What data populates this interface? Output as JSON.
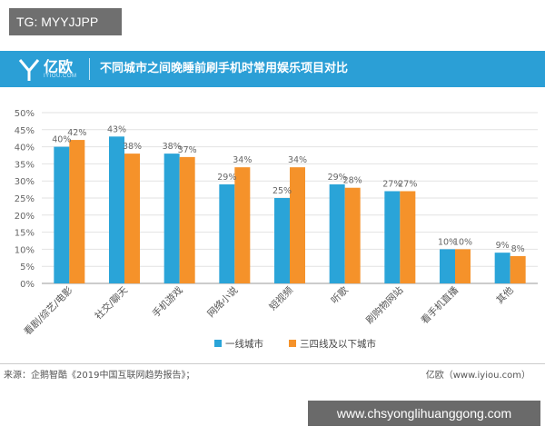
{
  "tg_label": "TG: MYYJJPP",
  "header": {
    "logo_name": "亿欧",
    "logo_sub": "IYIOU.COM",
    "title": "不同城市之间晚睡前刷手机时常用娱乐项目对比",
    "color": "#2b9fd6"
  },
  "chart_data": {
    "type": "bar",
    "categories": [
      "看剧/综艺/电影",
      "社交/聊天",
      "手机游戏",
      "网络小说",
      "短视频",
      "听歌",
      "刷购物网站",
      "看手机直播",
      "其他"
    ],
    "series": [
      {
        "name": "一线城市",
        "color": "#2aa4d8",
        "values": [
          40,
          43,
          38,
          29,
          25,
          29,
          27,
          10,
          9
        ],
        "labels": [
          "40%",
          "43%",
          "38%",
          "29%",
          "25%",
          "29%",
          "27%",
          "10%",
          "9%"
        ]
      },
      {
        "name": "三四线及以下城市",
        "color": "#f5922a",
        "values": [
          42,
          38,
          37,
          34,
          34,
          28,
          27,
          10,
          8
        ],
        "labels": [
          "42%",
          "38%",
          "37%",
          "34%",
          "34%",
          "28%",
          "27%",
          "10%",
          "8%"
        ]
      }
    ],
    "ylim": [
      0,
      50
    ],
    "yticks": [
      0,
      5,
      10,
      15,
      20,
      25,
      30,
      35,
      40,
      45,
      50
    ],
    "ytick_labels": [
      "0%",
      "5%",
      "10%",
      "15%",
      "20%",
      "25%",
      "30%",
      "35%",
      "40%",
      "45%",
      "50%"
    ],
    "grid": true,
    "legend_position": "bottom-center"
  },
  "footer": {
    "source": "来源：企鹅智酷《2019中国互联网趋势报告》；",
    "credit": "亿欧（www.iyiou.com）"
  },
  "watermark": "www.chsyonglihuanggong.com"
}
